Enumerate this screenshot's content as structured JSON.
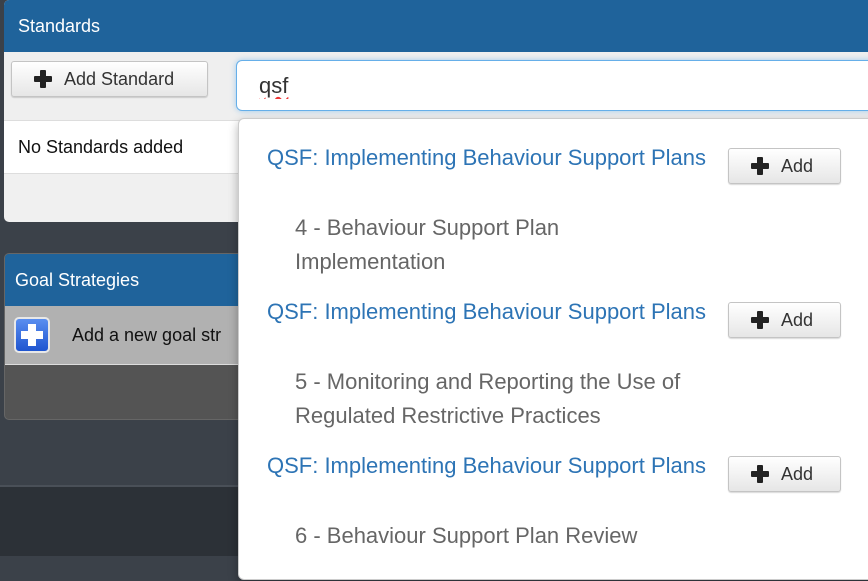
{
  "standards": {
    "title": "Standards",
    "add_button": "Add Standard",
    "empty_text": "No Standards added",
    "search": {
      "value": "qsf"
    }
  },
  "goal_strategies": {
    "title": "Goal Strategies",
    "add_text": "Add a new goal str"
  },
  "results": [
    {
      "title": "QSF: Implementing Behaviour Support Plans",
      "subtitle": "4 - Behaviour Support Plan Implementation",
      "button": "Add"
    },
    {
      "title": "QSF: Implementing Behaviour Support Plans",
      "subtitle": "5 - Monitoring and Reporting the Use of Regulated Restrictive Practices",
      "button": "Add"
    },
    {
      "title": "QSF: Implementing Behaviour Support Plans",
      "subtitle": "6 - Behaviour Support Plan Review",
      "button": "Add"
    }
  ],
  "colors": {
    "header": "#1f639b",
    "link": "#2d74b5",
    "focus": "#66afe9"
  },
  "icons": {
    "add": "plus-icon",
    "goal_add": "plus-square-icon"
  }
}
